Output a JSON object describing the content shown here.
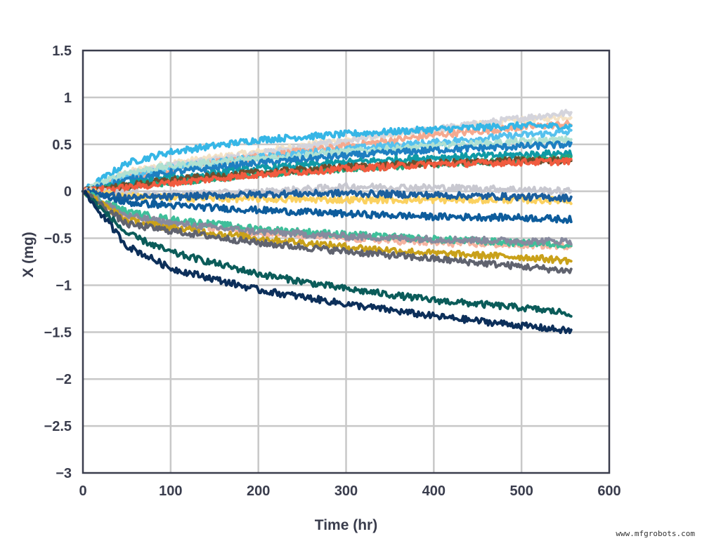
{
  "chart_data": {
    "type": "line",
    "title": "",
    "xlabel": "Time (hr)",
    "ylabel": "X (mg)",
    "xlim": [
      0,
      600
    ],
    "ylim": [
      -3,
      1.5
    ],
    "x_ticks": [
      0,
      100,
      200,
      300,
      400,
      500,
      600
    ],
    "y_ticks": [
      1.5,
      1,
      0.5,
      0,
      -0.5,
      -1,
      -1.5,
      -2,
      -2.5,
      -3
    ],
    "y_tick_labels": [
      "1.5",
      "1",
      "0.5",
      "0",
      "−0.5",
      "−1",
      "−1.5",
      "−2",
      "−2.5",
      "−3"
    ],
    "grid": true,
    "legend": "none",
    "series": [
      {
        "color": "#f3e2c5",
        "x": [
          0,
          50,
          100,
          200,
          300,
          400,
          500,
          557
        ],
        "y": [
          0,
          0.2,
          0.3,
          0.42,
          0.55,
          0.66,
          0.76,
          0.8
        ]
      },
      {
        "color": "#d4d4dc",
        "x": [
          0,
          50,
          100,
          200,
          300,
          400,
          500,
          557
        ],
        "y": [
          0,
          0.18,
          0.27,
          0.4,
          0.54,
          0.66,
          0.78,
          0.84
        ]
      },
      {
        "color": "#f5a98f",
        "x": [
          0,
          50,
          100,
          200,
          300,
          400,
          500,
          557
        ],
        "y": [
          0,
          0.16,
          0.24,
          0.37,
          0.48,
          0.6,
          0.68,
          0.72
        ]
      },
      {
        "color": "#36b6e6",
        "x": [
          0,
          50,
          100,
          200,
          300,
          400,
          500,
          557
        ],
        "y": [
          0,
          0.3,
          0.42,
          0.55,
          0.61,
          0.66,
          0.7,
          0.69
        ]
      },
      {
        "color": "#56c1ee",
        "x": [
          0,
          50,
          100,
          200,
          300,
          400,
          500,
          557
        ],
        "y": [
          0,
          0.17,
          0.25,
          0.36,
          0.45,
          0.52,
          0.6,
          0.63
        ]
      },
      {
        "color": "#b0e1d2",
        "x": [
          0,
          50,
          100,
          200,
          300,
          400,
          500,
          557
        ],
        "y": [
          0,
          0.2,
          0.27,
          0.35,
          0.42,
          0.48,
          0.53,
          0.55
        ]
      },
      {
        "color": "#1e7fc1",
        "x": [
          0,
          50,
          100,
          200,
          300,
          400,
          500,
          557
        ],
        "y": [
          0,
          0.12,
          0.2,
          0.3,
          0.38,
          0.44,
          0.48,
          0.5
        ]
      },
      {
        "color": "#0f9aa6",
        "x": [
          0,
          50,
          100,
          200,
          300,
          400,
          500,
          557
        ],
        "y": [
          0,
          0.08,
          0.14,
          0.24,
          0.31,
          0.36,
          0.39,
          0.41
        ]
      },
      {
        "color": "#22a67c",
        "x": [
          0,
          50,
          100,
          200,
          300,
          400,
          500,
          557
        ],
        "y": [
          0,
          0.05,
          0.1,
          0.18,
          0.24,
          0.29,
          0.33,
          0.36
        ]
      },
      {
        "color": "#6b4f2e",
        "x": [
          0,
          50,
          100,
          200,
          300,
          400,
          500,
          557
        ],
        "y": [
          0,
          0.06,
          0.12,
          0.2,
          0.26,
          0.3,
          0.33,
          0.33
        ]
      },
      {
        "color": "#f15b3f",
        "x": [
          0,
          50,
          100,
          200,
          300,
          400,
          500,
          557
        ],
        "y": [
          0,
          0.04,
          0.09,
          0.18,
          0.24,
          0.29,
          0.31,
          0.32
        ]
      },
      {
        "color": "#c8c8d0",
        "x": [
          0,
          50,
          100,
          200,
          300,
          400,
          500,
          557
        ],
        "y": [
          0,
          -0.02,
          -0.03,
          -0.01,
          0.05,
          0.04,
          0.02,
          0.0
        ]
      },
      {
        "color": "#fbd160",
        "x": [
          0,
          50,
          100,
          200,
          300,
          400,
          500,
          557
        ],
        "y": [
          0,
          -0.05,
          -0.07,
          -0.08,
          -0.09,
          -0.09,
          -0.09,
          -0.1
        ]
      },
      {
        "color": "#1b5f9e",
        "x": [
          0,
          50,
          100,
          200,
          300,
          400,
          500,
          557
        ],
        "y": [
          0,
          -0.07,
          -0.06,
          -0.03,
          -0.02,
          -0.04,
          -0.06,
          -0.07
        ]
      },
      {
        "color": "#0d5c9c",
        "x": [
          0,
          50,
          100,
          200,
          300,
          400,
          500,
          557
        ],
        "y": [
          0,
          -0.12,
          -0.15,
          -0.2,
          -0.24,
          -0.27,
          -0.28,
          -0.3
        ]
      },
      {
        "color": "#f5b3a0",
        "x": [
          0,
          50,
          100,
          200,
          300,
          400,
          500,
          557
        ],
        "y": [
          0,
          -0.28,
          -0.34,
          -0.44,
          -0.5,
          -0.55,
          -0.57,
          -0.58
        ]
      },
      {
        "color": "#3fbf9a",
        "x": [
          0,
          50,
          100,
          200,
          300,
          400,
          500,
          557
        ],
        "y": [
          0,
          -0.22,
          -0.3,
          -0.4,
          -0.46,
          -0.51,
          -0.55,
          -0.57
        ]
      },
      {
        "color": "#878a9e",
        "x": [
          0,
          50,
          100,
          200,
          300,
          400,
          500,
          557
        ],
        "y": [
          0,
          -0.26,
          -0.34,
          -0.43,
          -0.48,
          -0.51,
          -0.53,
          -0.53
        ]
      },
      {
        "color": "#c9a11a",
        "x": [
          0,
          50,
          100,
          200,
          300,
          400,
          500,
          557
        ],
        "y": [
          0,
          -0.31,
          -0.39,
          -0.5,
          -0.59,
          -0.66,
          -0.7,
          -0.74
        ]
      },
      {
        "color": "#60636f",
        "x": [
          0,
          50,
          100,
          200,
          300,
          400,
          500,
          557
        ],
        "y": [
          0,
          -0.35,
          -0.42,
          -0.55,
          -0.64,
          -0.72,
          -0.8,
          -0.85
        ]
      },
      {
        "color": "#0b5c5a",
        "x": [
          0,
          50,
          100,
          200,
          300,
          400,
          500,
          557
        ],
        "y": [
          0,
          -0.45,
          -0.65,
          -0.88,
          -1.04,
          -1.16,
          -1.24,
          -1.3
        ]
      },
      {
        "color": "#0c2f5a",
        "x": [
          0,
          50,
          100,
          200,
          300,
          400,
          500,
          557
        ],
        "y": [
          0,
          -0.58,
          -0.82,
          -1.05,
          -1.2,
          -1.33,
          -1.43,
          -1.49
        ]
      }
    ]
  },
  "watermark": "www.mfgrobots.com"
}
